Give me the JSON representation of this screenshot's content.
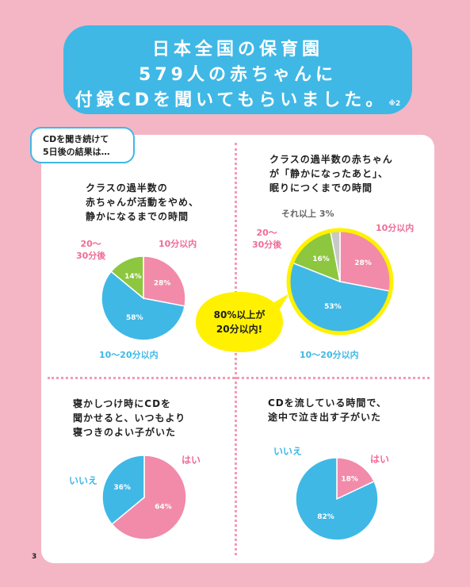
{
  "title": {
    "line1": "日本全国の保育園",
    "line2": "579人の赤ちゃんに",
    "line3": "付録CDを聞いてもらいました。",
    "note": "※2"
  },
  "intro": {
    "line1": "CDを聞き続けて",
    "line2": "5日後の結果は…"
  },
  "callout": {
    "line1": "80%以上が",
    "line2": "20分以内!"
  },
  "page_number": "3",
  "colors": {
    "pink": "#f28aaa",
    "blue": "#3fb8e6",
    "green": "#8dc63f",
    "gray": "#c8c8c8",
    "yellow": "#fff100",
    "background": "#f4b6c4"
  },
  "chart_data": [
    {
      "type": "pie",
      "title_lines": [
        "クラスの過半数の",
        "赤ちゃんが活動をやめ、",
        "静かになるまでの時間"
      ],
      "slices": [
        {
          "label": "10分以内",
          "value": 28,
          "value_label": "28%",
          "color": "#f28aaa"
        },
        {
          "label": "10〜20分以内",
          "value": 58,
          "value_label": "58%",
          "color": "#3fb8e6"
        },
        {
          "label_lines": [
            "20〜",
            "30分後"
          ],
          "value": 14,
          "value_label": "14%",
          "color": "#8dc63f"
        }
      ]
    },
    {
      "type": "pie",
      "title_lines": [
        "クラスの過半数の赤ちゃん",
        "が「静かになったあと」、",
        "眠りにつくまでの時間"
      ],
      "slices": [
        {
          "label": "10分以内",
          "value": 28,
          "value_label": "28%",
          "color": "#f28aaa"
        },
        {
          "label": "10〜20分以内",
          "value": 53,
          "value_label": "53%",
          "color": "#3fb8e6"
        },
        {
          "label_lines": [
            "20〜",
            "30分後"
          ],
          "value": 16,
          "value_label": "16%",
          "color": "#8dc63f"
        },
        {
          "label": "それ以上",
          "value": 3,
          "value_label": "3%",
          "color": "#c8c8c8"
        }
      ]
    },
    {
      "type": "pie",
      "title_lines": [
        "寝かしつけ時にCDを",
        "聞かせると、いつもより",
        "寝つきのよい子がいた"
      ],
      "slices": [
        {
          "label": "はい",
          "value": 64,
          "value_label": "64%",
          "color": "#f28aaa"
        },
        {
          "label": "いいえ",
          "value": 36,
          "value_label": "36%",
          "color": "#3fb8e6"
        }
      ]
    },
    {
      "type": "pie",
      "title_lines": [
        "CDを流している時間で、",
        "途中で泣き出す子がいた"
      ],
      "slices": [
        {
          "label": "はい",
          "value": 18,
          "value_label": "18%",
          "color": "#f28aaa"
        },
        {
          "label": "いいえ",
          "value": 82,
          "value_label": "82%",
          "color": "#3fb8e6"
        }
      ]
    }
  ]
}
